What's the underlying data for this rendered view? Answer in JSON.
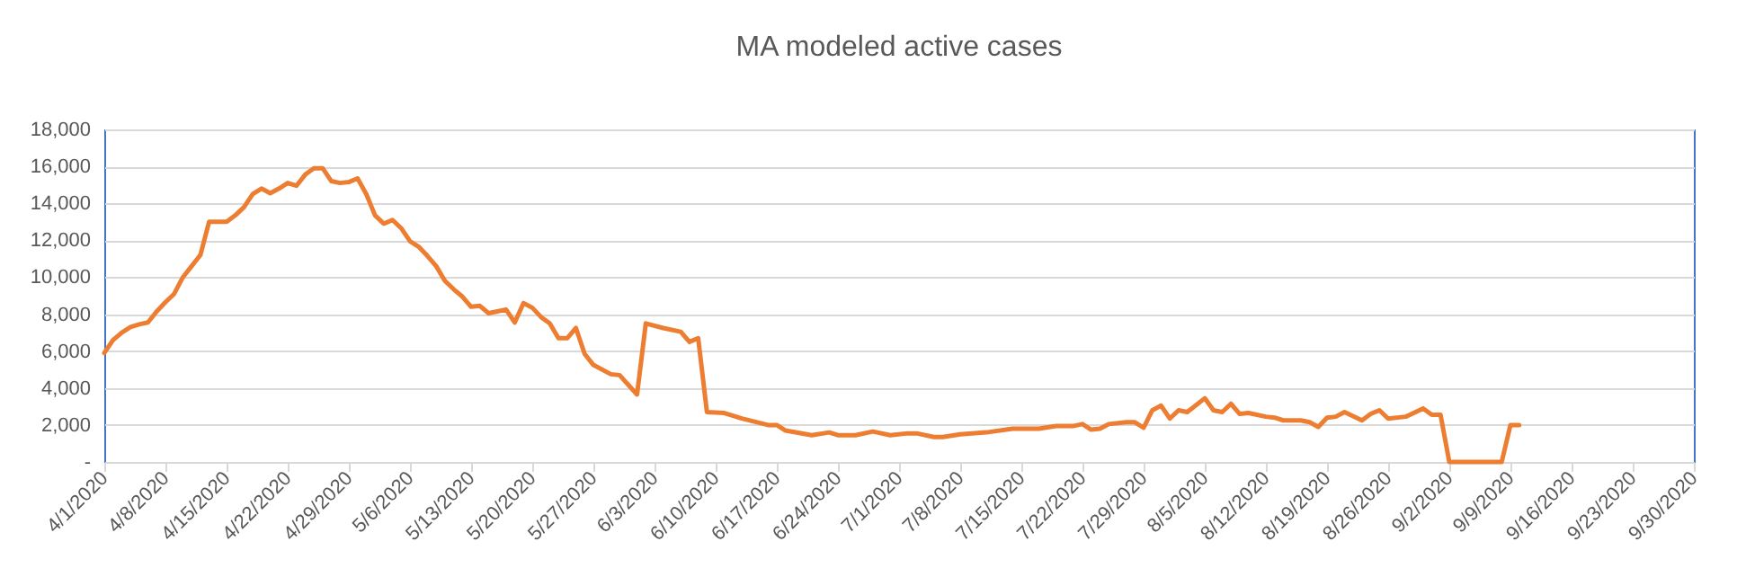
{
  "chart_data": {
    "type": "line",
    "title": "MA modeled active cases",
    "x": [
      "2020-04-01",
      "2020-04-02",
      "2020-04-03",
      "2020-04-04",
      "2020-04-05",
      "2020-04-06",
      "2020-04-07",
      "2020-04-08",
      "2020-04-09",
      "2020-04-10",
      "2020-04-11",
      "2020-04-12",
      "2020-04-13",
      "2020-04-14",
      "2020-04-15",
      "2020-04-16",
      "2020-04-17",
      "2020-04-18",
      "2020-04-19",
      "2020-04-20",
      "2020-04-21",
      "2020-04-22",
      "2020-04-23",
      "2020-04-24",
      "2020-04-25",
      "2020-04-26",
      "2020-04-27",
      "2020-04-28",
      "2020-04-29",
      "2020-04-30",
      "2020-05-01",
      "2020-05-02",
      "2020-05-03",
      "2020-05-04",
      "2020-05-05",
      "2020-05-06",
      "2020-05-07",
      "2020-05-08",
      "2020-05-09",
      "2020-05-10",
      "2020-05-11",
      "2020-05-12",
      "2020-05-13",
      "2020-05-14",
      "2020-05-15",
      "2020-05-16",
      "2020-05-17",
      "2020-05-18",
      "2020-05-19",
      "2020-05-20",
      "2020-05-21",
      "2020-05-22",
      "2020-05-23",
      "2020-05-24",
      "2020-05-25",
      "2020-05-26",
      "2020-05-27",
      "2020-05-29",
      "2020-05-30",
      "2020-06-01",
      "2020-06-02",
      "2020-06-04",
      "2020-06-06",
      "2020-06-07",
      "2020-06-08",
      "2020-06-09",
      "2020-06-11",
      "2020-06-13",
      "2020-06-16",
      "2020-06-17",
      "2020-06-18",
      "2020-06-21",
      "2020-06-23",
      "2020-06-24",
      "2020-06-26",
      "2020-06-28",
      "2020-06-30",
      "2020-07-02",
      "2020-07-03",
      "2020-07-05",
      "2020-07-06",
      "2020-07-08",
      "2020-07-11",
      "2020-07-14",
      "2020-07-17",
      "2020-07-19",
      "2020-07-21",
      "2020-07-22",
      "2020-07-23",
      "2020-07-24",
      "2020-07-25",
      "2020-07-27",
      "2020-07-28",
      "2020-07-29",
      "2020-07-30",
      "2020-07-31",
      "2020-08-01",
      "2020-08-02",
      "2020-08-03",
      "2020-08-05",
      "2020-08-06",
      "2020-08-07",
      "2020-08-08",
      "2020-08-09",
      "2020-08-10",
      "2020-08-12",
      "2020-08-13",
      "2020-08-14",
      "2020-08-16",
      "2020-08-17",
      "2020-08-18",
      "2020-08-19",
      "2020-08-20",
      "2020-08-21",
      "2020-08-23",
      "2020-08-24",
      "2020-08-25",
      "2020-08-26",
      "2020-08-28",
      "2020-08-30",
      "2020-08-31",
      "2020-09-01",
      "2020-09-02",
      "2020-09-08",
      "2020-09-09",
      "2020-09-10"
    ],
    "series": [
      {
        "color": "#ed7d31",
        "values": [
          5900,
          6600,
          7000,
          7300,
          7450,
          7550,
          8150,
          8650,
          9100,
          10000,
          10600,
          11200,
          13000,
          13000,
          13000,
          13350,
          13800,
          14500,
          14800,
          14550,
          14800,
          15100,
          14950,
          15550,
          15900,
          15900,
          15200,
          15100,
          15150,
          15350,
          14500,
          13350,
          12900,
          13100,
          12650,
          11950,
          11650,
          11150,
          10600,
          9800,
          9350,
          8950,
          8400,
          8450,
          8050,
          8150,
          8250,
          7550,
          8600,
          8350,
          7850,
          7500,
          6700,
          6700,
          7250,
          5850,
          5250,
          4750,
          4700,
          3650,
          7500,
          7250,
          7050,
          6500,
          6700,
          2700,
          2650,
          2350,
          2000,
          2000,
          1700,
          1450,
          1600,
          1450,
          1450,
          1650,
          1450,
          1550,
          1550,
          1350,
          1350,
          1500,
          1600,
          1800,
          1800,
          1950,
          1950,
          2050,
          1750,
          1800,
          2050,
          2150,
          2150,
          1850,
          2800,
          3050,
          2350,
          2800,
          2700,
          3450,
          2800,
          2700,
          3150,
          2600,
          2650,
          2450,
          2400,
          2250,
          2250,
          2150,
          1900,
          2400,
          2450,
          2700,
          2250,
          2600,
          2800,
          2350,
          2450,
          2900,
          2550,
          2550,
          0,
          0,
          2000,
          2000
        ]
      }
    ],
    "xlim": [
      "2020-04-01",
      "2020-09-30"
    ],
    "xticks": [
      {
        "value": "2020-04-01",
        "label": "4/1/2020"
      },
      {
        "value": "2020-04-08",
        "label": "4/8/2020"
      },
      {
        "value": "2020-04-15",
        "label": "4/15/2020"
      },
      {
        "value": "2020-04-22",
        "label": "4/22/2020"
      },
      {
        "value": "2020-04-29",
        "label": "4/29/2020"
      },
      {
        "value": "2020-05-06",
        "label": "5/6/2020"
      },
      {
        "value": "2020-05-13",
        "label": "5/13/2020"
      },
      {
        "value": "2020-05-20",
        "label": "5/20/2020"
      },
      {
        "value": "2020-05-27",
        "label": "5/27/2020"
      },
      {
        "value": "2020-06-03",
        "label": "6/3/2020"
      },
      {
        "value": "2020-06-10",
        "label": "6/10/2020"
      },
      {
        "value": "2020-06-17",
        "label": "6/17/2020"
      },
      {
        "value": "2020-06-24",
        "label": "6/24/2020"
      },
      {
        "value": "2020-07-01",
        "label": "7/1/2020"
      },
      {
        "value": "2020-07-08",
        "label": "7/8/2020"
      },
      {
        "value": "2020-07-15",
        "label": "7/15/2020"
      },
      {
        "value": "2020-07-22",
        "label": "7/22/2020"
      },
      {
        "value": "2020-07-29",
        "label": "7/29/2020"
      },
      {
        "value": "2020-08-05",
        "label": "8/5/2020"
      },
      {
        "value": "2020-08-12",
        "label": "8/12/2020"
      },
      {
        "value": "2020-08-19",
        "label": "8/19/2020"
      },
      {
        "value": "2020-08-26",
        "label": "8/26/2020"
      },
      {
        "value": "2020-09-02",
        "label": "9/2/2020"
      },
      {
        "value": "2020-09-09",
        "label": "9/9/2020"
      },
      {
        "value": "2020-09-16",
        "label": "9/16/2020"
      },
      {
        "value": "2020-09-23",
        "label": "9/23/2020"
      },
      {
        "value": "2020-09-30",
        "label": "9/30/2020"
      }
    ],
    "ylim": [
      0,
      18000
    ],
    "yticks": [
      {
        "value": 0,
        "label": "-"
      },
      {
        "value": 2000,
        "label": "2,000"
      },
      {
        "value": 4000,
        "label": "4,000"
      },
      {
        "value": 6000,
        "label": "6,000"
      },
      {
        "value": 8000,
        "label": "8,000"
      },
      {
        "value": 10000,
        "label": "10,000"
      },
      {
        "value": 12000,
        "label": "12,000"
      },
      {
        "value": 14000,
        "label": "14,000"
      },
      {
        "value": 16000,
        "label": "16,000"
      },
      {
        "value": 18000,
        "label": "18,000"
      }
    ],
    "grid": "y",
    "legend": false,
    "marker": "none",
    "line_style": "solid"
  }
}
